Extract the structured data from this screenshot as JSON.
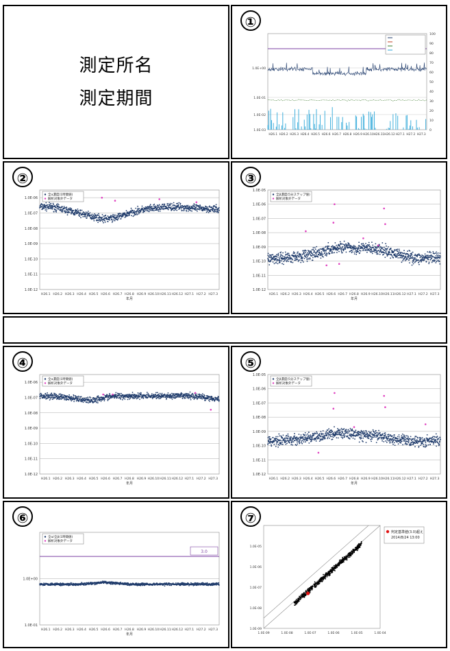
{
  "header": {
    "line1": "測定所名",
    "line2": "測定期間"
  },
  "panels": [
    {
      "number": "①"
    },
    {
      "number": "②"
    },
    {
      "number": "③"
    },
    {
      "number": "④"
    },
    {
      "number": "⑤"
    },
    {
      "number": "⑥"
    },
    {
      "number": "⑦"
    }
  ],
  "colors": {
    "dose_rate": "#1f3b6b",
    "analysis_target": "#e040c0",
    "precipitation": "#2aa6d8",
    "reference_line": "#7a3fa0",
    "alert_point": "#e01010"
  },
  "chart_data": [
    {
      "type": "line",
      "panel": "①",
      "x_ticks": [
        "H26.1",
        "H26.2",
        "H26.3",
        "H26.4",
        "H26.5",
        "H26.6",
        "H26.7",
        "H26.8",
        "H26.9",
        "H26.10",
        "H26.11",
        "H26.12",
        "H27.1",
        "H27.2",
        "H27.3"
      ],
      "y_ticks": [
        "1.0E+00",
        "1.0E-01",
        "1.0E-02",
        "1.0E-03"
      ],
      "y2_ticks": [
        "100",
        "90",
        "80",
        "70",
        "60",
        "50",
        "40",
        "30",
        "20",
        "10",
        "0"
      ],
      "series": [],
      "grid": true
    },
    {
      "type": "scatter",
      "panel": "②",
      "legend": [
        "全α濃度(1時間値)",
        "解析対象外データ"
      ],
      "x_ticks": [
        "H26.1",
        "H26.2",
        "H26.3",
        "H26.4",
        "H26.5",
        "H26.6",
        "H26.7",
        "H26.8",
        "H26.9",
        "H26.10",
        "H26.11",
        "H26.12",
        "H27.1",
        "H27.2",
        "H27.3"
      ],
      "y_ticks": [
        "1.0E-06",
        "1.0E-07",
        "1.0E-08",
        "1.0E-09",
        "1.0E-10",
        "1.0E-11",
        "1.0E-12"
      ],
      "xlabel": "年月",
      "trend_exp": [
        -6.6,
        -6.6,
        -6.8,
        -7.0,
        -7.2,
        -7.4,
        -7.3,
        -7.0,
        -6.8,
        -6.7,
        -6.6,
        -6.6,
        -6.7,
        -6.7,
        -6.8
      ],
      "spread": 0.35,
      "outliers": [
        [
          5.2,
          -6.0
        ],
        [
          6.3,
          -6.2
        ],
        [
          13.1,
          -6.3
        ],
        [
          10.0,
          -6.1
        ]
      ],
      "ylim_exp": [
        -12,
        -5.5
      ],
      "grid": true
    },
    {
      "type": "scatter",
      "panel": "③",
      "legend": [
        "全β濃度(5分ステップ値)",
        "解析対象外データ"
      ],
      "x_ticks": [
        "H26.1",
        "H26.2",
        "H26.3",
        "H26.4",
        "H26.5",
        "H26.6",
        "H26.7",
        "H26.8",
        "H26.9",
        "H26.10",
        "H26.11",
        "H26.12",
        "H27.1",
        "H27.2",
        "H27.3"
      ],
      "y_ticks": [
        "1.0E-05",
        "1.0E-06",
        "1.0E-07",
        "1.0E-08",
        "1.0E-09",
        "1.0E-10",
        "1.0E-11",
        "1.0E-12"
      ],
      "xlabel": "年月",
      "trend_exp": [
        -9.8,
        -9.8,
        -9.7,
        -9.6,
        -9.5,
        -9.2,
        -9.0,
        -9.1,
        -9.1,
        -9.2,
        -9.4,
        -9.6,
        -9.8,
        -9.8,
        -9.8
      ],
      "spread": 0.6,
      "outliers": [
        [
          5.8,
          -6.0
        ],
        [
          5.7,
          -7.3
        ],
        [
          10.1,
          -6.3
        ],
        [
          10.2,
          -7.4
        ],
        [
          8.3,
          -8.4
        ],
        [
          5.1,
          -10.3
        ],
        [
          9.6,
          -8.9
        ],
        [
          3.3,
          -7.9
        ],
        [
          6.2,
          -10.2
        ]
      ],
      "ylim_exp": [
        -12,
        -5
      ],
      "grid": true
    },
    {
      "type": "scatter",
      "panel": "④",
      "legend": [
        "全α濃度(1時間値)",
        "解析対象外データ"
      ],
      "x_ticks": [
        "H26.1",
        "H26.2",
        "H26.3",
        "H26.4",
        "H26.5",
        "H26.6",
        "H26.7",
        "H26.8",
        "H26.9",
        "H26.10",
        "H26.11",
        "H26.12",
        "H27.1",
        "H27.2",
        "H27.3"
      ],
      "y_ticks": [
        "1.0E-06",
        "1.0E-07",
        "1.0E-08",
        "1.0E-09",
        "1.0E-10",
        "1.0E-11",
        "1.0E-12"
      ],
      "xlabel": "年月",
      "trend_exp": [
        -6.9,
        -6.9,
        -7.0,
        -7.1,
        -7.2,
        -7.0,
        -6.9,
        -6.9,
        -6.9,
        -6.9,
        -6.9,
        -6.9,
        -6.9,
        -7.0,
        -7.1
      ],
      "spread": 0.3,
      "outliers": [
        [
          5.3,
          -6.8
        ],
        [
          6.1,
          -6.8
        ],
        [
          13.0,
          -6.7
        ],
        [
          14.3,
          -7.8
        ]
      ],
      "ylim_exp": [
        -12,
        -5.5
      ],
      "grid": true
    },
    {
      "type": "scatter",
      "panel": "⑤",
      "legend": [
        "全β濃度(5分ステップ値)",
        "解析対象外データ"
      ],
      "x_ticks": [
        "H26.1",
        "H26.2",
        "H26.3",
        "H26.4",
        "H26.5",
        "H26.6",
        "H26.7",
        "H26.8",
        "H26.9",
        "H26.10",
        "H26.11",
        "H26.12",
        "H27.1",
        "H27.2",
        "H27.3"
      ],
      "y_ticks": [
        "1.0E-05",
        "1.0E-06",
        "1.0E-07",
        "1.0E-08",
        "1.0E-09",
        "1.0E-10",
        "1.0E-11",
        "1.0E-12"
      ],
      "xlabel": "年月",
      "trend_exp": [
        -9.7,
        -9.6,
        -9.6,
        -9.5,
        -9.4,
        -9.2,
        -9.1,
        -9.2,
        -9.3,
        -9.3,
        -9.5,
        -9.6,
        -9.7,
        -9.7,
        -9.6
      ],
      "spread": 0.55,
      "outliers": [
        [
          5.8,
          -6.3
        ],
        [
          5.7,
          -7.4
        ],
        [
          10.1,
          -6.5
        ],
        [
          10.2,
          -7.3
        ],
        [
          4.4,
          -10.5
        ],
        [
          7.5,
          -8.7
        ],
        [
          13.7,
          -8.5
        ]
      ],
      "ylim_exp": [
        -12,
        -5
      ],
      "grid": true
    },
    {
      "type": "scatter",
      "panel": "⑥",
      "legend": [
        "全α/全β(1時間値)",
        "解析対象外データ"
      ],
      "x_ticks": [
        "H26.1",
        "H26.2",
        "H26.3",
        "H26.4",
        "H26.5",
        "H26.6",
        "H26.7",
        "H26.8",
        "H26.9",
        "H26.10",
        "H26.11",
        "H26.12",
        "H27.1",
        "H27.2",
        "H27.3"
      ],
      "y_ticks": [
        "1.0E+00",
        "1.0E-01"
      ],
      "xlabel": "年月",
      "reference_label": "3.0",
      "trend_exp": [
        -0.12,
        -0.12,
        -0.12,
        -0.12,
        -0.11,
        -0.08,
        -0.1,
        -0.12,
        -0.12,
        -0.12,
        -0.12,
        -0.12,
        -0.12,
        -0.12,
        -0.12
      ],
      "spread": 0.04,
      "reference_exp": 0.48,
      "ylim_exp": [
        -1,
        1
      ],
      "grid": true
    },
    {
      "type": "scatter",
      "panel": "⑦",
      "legend": [
        "判定基準値(3.0)超え",
        "2014/8/24 13:00"
      ],
      "x_ticks": [
        "1.0E-09",
        "1.0E-08",
        "1.0E-07",
        "1.0E-06",
        "1.0E-05",
        "1.0E-04"
      ],
      "y_ticks": [
        "1.0E-05",
        "1.0E-06",
        "1.0E-07",
        "1.0E-08",
        "1.0E-09"
      ],
      "highlight_point": [
        -7.1,
        -7.3
      ],
      "xlim_exp": [
        -9,
        -4
      ],
      "ylim_exp": [
        -9,
        -4
      ],
      "grid": false
    }
  ]
}
